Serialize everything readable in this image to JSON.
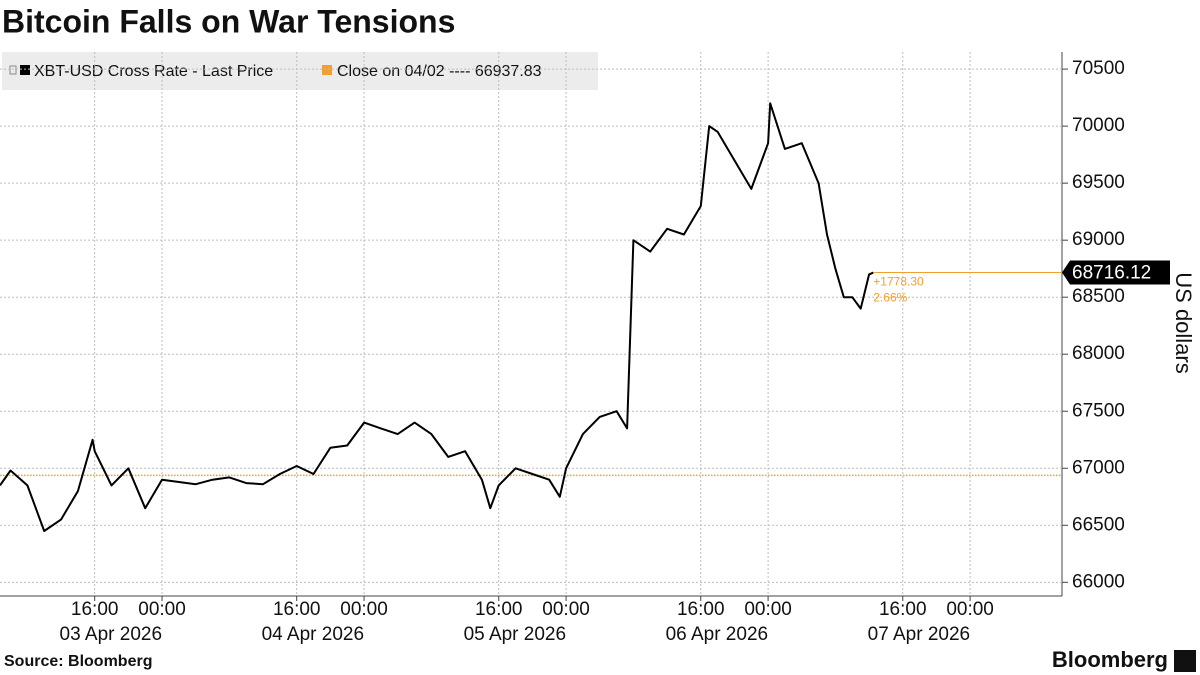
{
  "chart_data": {
    "type": "line",
    "title": "Bitcoin Falls on War Tensions",
    "source": "Source: Bloomberg",
    "brand": "Bloomberg",
    "y_label": "US dollars",
    "x": [
      "2026-04-02T04:45",
      "2026-04-02T06:00",
      "2026-04-02T08:00",
      "2026-04-02T10:00",
      "2026-04-02T12:00",
      "2026-04-02T14:00",
      "2026-04-02T15:45",
      "2026-04-02T16:00",
      "2026-04-02T18:00",
      "2026-04-02T20:00",
      "2026-04-02T22:00",
      "2026-04-03T00:00",
      "2026-04-03T02:00",
      "2026-04-03T04:00",
      "2026-04-03T06:00",
      "2026-04-03T08:00",
      "2026-04-03T10:00",
      "2026-04-03T12:00",
      "2026-04-03T14:00",
      "2026-04-03T16:00",
      "2026-04-03T18:00",
      "2026-04-03T20:00",
      "2026-04-03T22:00",
      "2026-04-04T00:00",
      "2026-04-04T02:00",
      "2026-04-04T04:00",
      "2026-04-04T06:00",
      "2026-04-04T08:00",
      "2026-04-04T10:00",
      "2026-04-04T12:00",
      "2026-04-04T14:00",
      "2026-04-04T15:00",
      "2026-04-04T16:00",
      "2026-04-04T18:00",
      "2026-04-04T20:00",
      "2026-04-04T22:00",
      "2026-04-04T23:15",
      "2026-04-05T00:00",
      "2026-04-05T02:00",
      "2026-04-05T04:00",
      "2026-04-05T06:00",
      "2026-04-05T07:15",
      "2026-04-05T08:00",
      "2026-04-05T10:00",
      "2026-04-05T12:00",
      "2026-04-05T14:00",
      "2026-04-05T16:00",
      "2026-04-05T17:00",
      "2026-04-05T18:00",
      "2026-04-05T20:00",
      "2026-04-05T22:00",
      "2026-04-06T00:00",
      "2026-04-06T00:15",
      "2026-04-06T02:00",
      "2026-04-06T04:00",
      "2026-04-06T06:00",
      "2026-04-06T07:00",
      "2026-04-06T08:00",
      "2026-04-06T09:00",
      "2026-04-06T10:00",
      "2026-04-06T11:00",
      "2026-04-06T12:00",
      "2026-04-06T12:30"
    ],
    "series": [
      {
        "name": "XBT-USD Cross Rate - Last Price",
        "color": "#000000",
        "values": [
          66850,
          66980,
          66850,
          66450,
          66550,
          66800,
          67250,
          67150,
          66850,
          67000,
          66650,
          66900,
          66880,
          66860,
          66900,
          66920,
          66870,
          66860,
          66950,
          67020,
          66950,
          67180,
          67200,
          67400,
          67350,
          67300,
          67400,
          67300,
          67100,
          67150,
          66900,
          66650,
          66850,
          67000,
          66950,
          66900,
          66750,
          67000,
          67300,
          67450,
          67500,
          67350,
          69000,
          68900,
          69100,
          69050,
          69300,
          70000,
          69950,
          69700,
          69450,
          69850,
          70200,
          69800,
          69850,
          69500,
          69050,
          68750,
          68500,
          68500,
          68400,
          68700,
          68716.12
        ]
      }
    ],
    "reference": {
      "label": "Close on 04/02 ---- 66937.83",
      "value": 66937.83,
      "color": "#f0a030"
    },
    "change": {
      "value": 1778.3,
      "label": "+1778.30"
    },
    "change_pct": {
      "value": 2.66,
      "label": "2.66%"
    },
    "xlim": [
      "2026-04-02T04:45",
      "2026-04-07T10:55"
    ],
    "xticks": [
      {
        "value": "2026-04-02T16:00",
        "label": "16:00"
      },
      {
        "value": "2026-04-03T00:00",
        "label": "00:00"
      },
      {
        "value": "2026-04-03T16:00",
        "label": "16:00"
      },
      {
        "value": "2026-04-04T00:00",
        "label": "00:00"
      },
      {
        "value": "2026-04-04T16:00",
        "label": "16:00"
      },
      {
        "value": "2026-04-05T00:00",
        "label": "00:00"
      },
      {
        "value": "2026-04-05T16:00",
        "label": "16:00"
      },
      {
        "value": "2026-04-06T00:00",
        "label": "00:00"
      },
      {
        "value": "2026-04-06T16:00",
        "label": "16:00"
      },
      {
        "value": "2026-04-07T00:00",
        "label": "00:00"
      }
    ],
    "date_ticks": [
      {
        "value": "2026-04-03T00:00",
        "label": "03 Apr 2026"
      },
      {
        "value": "2026-04-04T00:00",
        "label": "04 Apr 2026"
      },
      {
        "value": "2026-04-05T00:00",
        "label": "05 Apr 2026"
      },
      {
        "value": "2026-04-06T00:00",
        "label": "06 Apr 2026"
      },
      {
        "value": "2026-04-07T00:00",
        "label": "07 Apr 2026"
      }
    ],
    "ylim": [
      65880,
      70650
    ],
    "yticks": [
      66000,
      66500,
      67000,
      67500,
      68000,
      68500,
      69000,
      69500,
      70000,
      70500
    ],
    "grid": true
  }
}
